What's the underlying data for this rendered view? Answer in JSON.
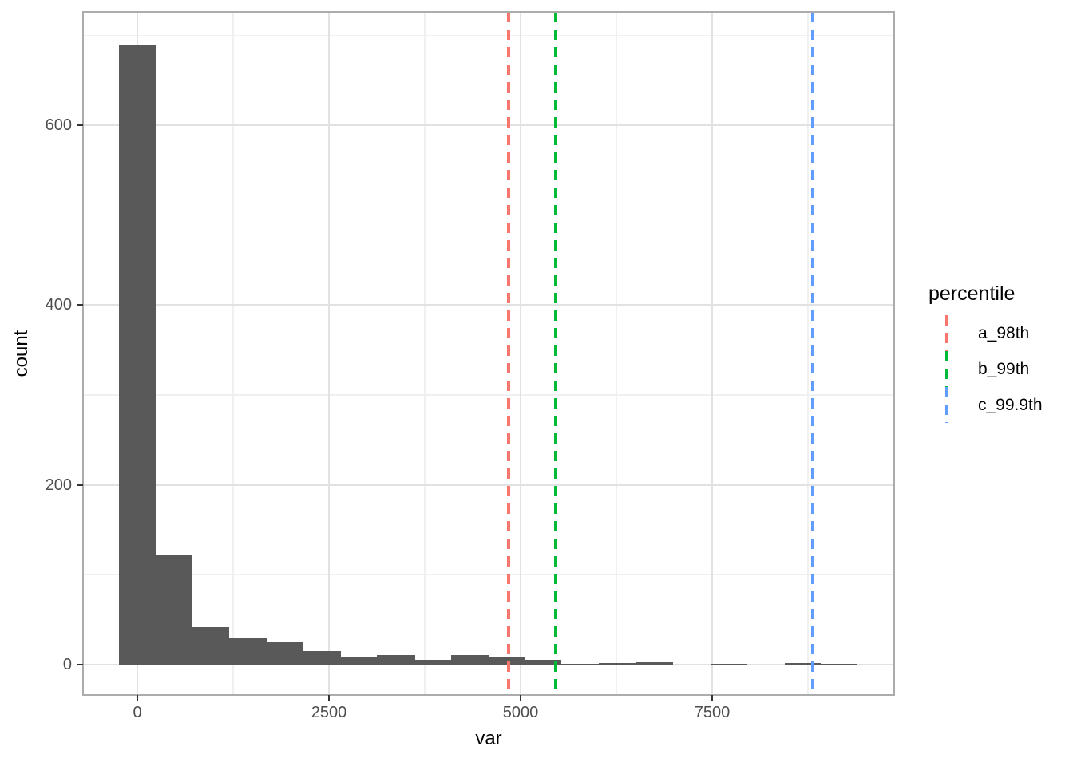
{
  "figure": {
    "background": "#ffffff",
    "panel_border_color": "#acacac",
    "grid_major_color": "#e2e2e2",
    "grid_minor_color": "#f0f0f0",
    "tick_mark_color": "#333333",
    "tick_label_color": "#4d4d4d"
  },
  "chart_data": {
    "type": "bar",
    "subtype": "histogram",
    "title": "",
    "xlabel": "var",
    "ylabel": "count",
    "bar_color": "#595959",
    "grid": "on",
    "x_ticks": [
      0,
      2500,
      5000,
      7500
    ],
    "y_ticks": [
      0,
      200,
      400,
      600
    ],
    "x_minor_gridlines": [
      1250,
      3750,
      6250,
      8750
    ],
    "y_minor_gridlines": [
      100,
      300,
      500,
      700
    ],
    "xlim": [
      -708,
      9875
    ],
    "ylim": [
      -34,
      726
    ],
    "bins": [
      {
        "x0": -240,
        "x1": 250,
        "count": 690
      },
      {
        "x0": 250,
        "x1": 720,
        "count": 122
      },
      {
        "x0": 720,
        "x1": 1200,
        "count": 42
      },
      {
        "x0": 1200,
        "x1": 1690,
        "count": 29
      },
      {
        "x0": 1690,
        "x1": 2170,
        "count": 26
      },
      {
        "x0": 2170,
        "x1": 2660,
        "count": 15
      },
      {
        "x0": 2660,
        "x1": 3130,
        "count": 8
      },
      {
        "x0": 3130,
        "x1": 3620,
        "count": 11
      },
      {
        "x0": 3620,
        "x1": 4090,
        "count": 5
      },
      {
        "x0": 4090,
        "x1": 4580,
        "count": 11
      },
      {
        "x0": 4580,
        "x1": 5050,
        "count": 9
      },
      {
        "x0": 5050,
        "x1": 5530,
        "count": 5
      },
      {
        "x0": 5530,
        "x1": 6020,
        "count": 1
      },
      {
        "x0": 6020,
        "x1": 6510,
        "count": 2
      },
      {
        "x0": 6510,
        "x1": 6990,
        "count": 3
      },
      {
        "x0": 6990,
        "x1": 7480,
        "count": 0
      },
      {
        "x0": 7480,
        "x1": 7960,
        "count": 1
      },
      {
        "x0": 7960,
        "x1": 8450,
        "count": 0
      },
      {
        "x0": 8450,
        "x1": 8920,
        "count": 2
      },
      {
        "x0": 8920,
        "x1": 9400,
        "count": 1
      }
    ],
    "vlines": [
      {
        "label": "a_98th",
        "x": 4845,
        "color": "#F8766D",
        "linetype": "dashed"
      },
      {
        "label": "b_99th",
        "x": 5460,
        "color": "#00BA38",
        "linetype": "dashed"
      },
      {
        "label": "c_99.9th",
        "x": 8810,
        "color": "#619CFF",
        "linetype": "dashed"
      }
    ],
    "legend": {
      "title": "percentile",
      "position": "right",
      "entries": [
        {
          "label": "a_98th",
          "color": "#F8766D"
        },
        {
          "label": "b_99th",
          "color": "#00BA38"
        },
        {
          "label": "c_99.9th",
          "color": "#619CFF"
        }
      ]
    }
  }
}
